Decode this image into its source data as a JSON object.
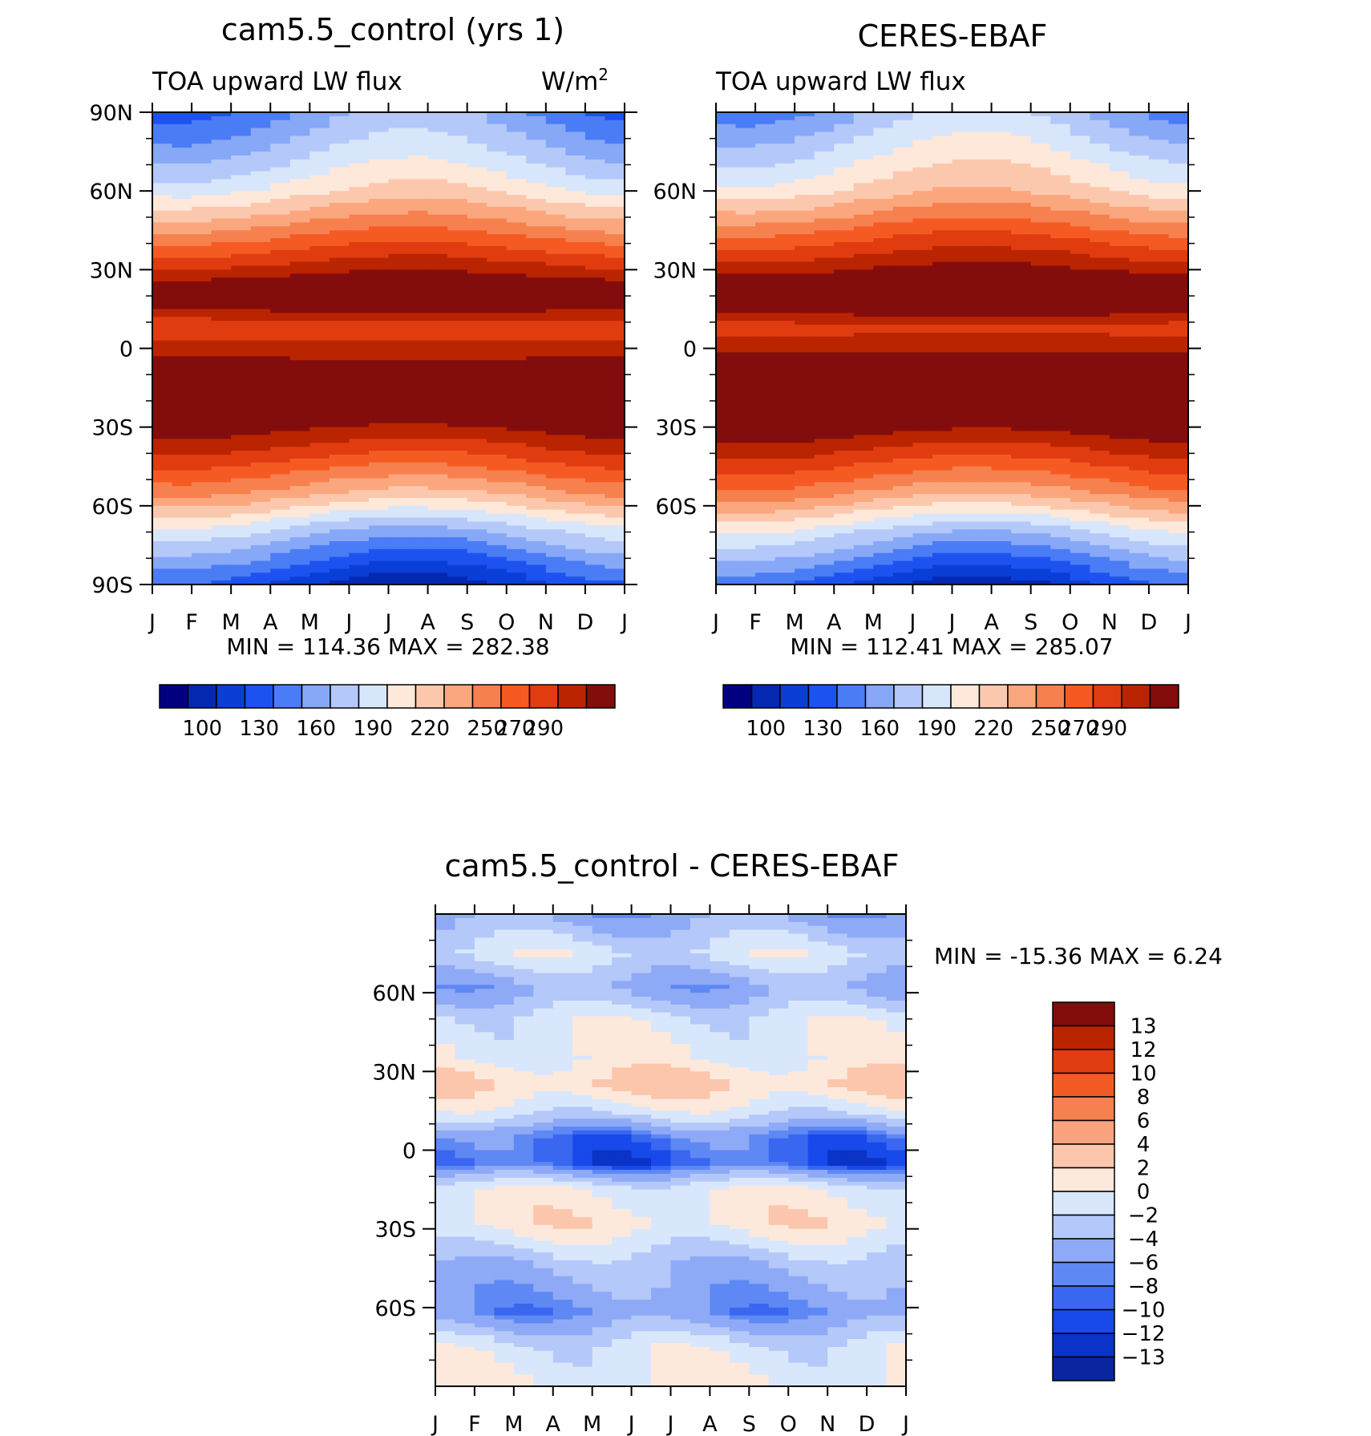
{
  "figure": {
    "colors": {
      "abs_palette": [
        "#000080",
        "#0528b0",
        "#0a3fd6",
        "#1c53f0",
        "#4a7cf5",
        "#86a8f7",
        "#b4c9fa",
        "#d8e6fb",
        "#fde8da",
        "#fcc8ad",
        "#fba77e",
        "#f7804f",
        "#f55a22",
        "#e03c10",
        "#bb2400",
        "#830d0d"
      ],
      "diff_palette": [
        "#071c8a",
        "#09259f",
        "#0a33c8",
        "#1849ea",
        "#3a67f0",
        "#5e88f3",
        "#8ea9f6",
        "#b4c8f9",
        "#d8e7fb",
        "#fde8dc",
        "#fcc6ac",
        "#f9a47e",
        "#f6804f",
        "#f35b25",
        "#df3c10",
        "#bb2400",
        "#830d0d"
      ]
    }
  },
  "chart_data": [
    {
      "type": "heatmap",
      "title": "cam5.5_control (yrs 1)",
      "left_string": "TOA upward LW flux",
      "right_string": "W/m",
      "right_string_sup": "2",
      "x_ticks": [
        "J",
        "F",
        "M",
        "A",
        "M",
        "J",
        "J",
        "A",
        "S",
        "O",
        "N",
        "D",
        "J"
      ],
      "y_ticks": [
        "90N",
        "60N",
        "30N",
        "0",
        "30S",
        "60S",
        "90S"
      ],
      "min_max": "MIN =  114.36 MAX =  282.38",
      "min": 114.36,
      "max": 282.38,
      "colorbar_levels": [
        100,
        110,
        120,
        130,
        140,
        150,
        160,
        170,
        180,
        190,
        200,
        210,
        220,
        230,
        240,
        250,
        260,
        270,
        280,
        290,
        300
      ],
      "colorbar_labels": [
        "100",
        "130",
        "160",
        "190",
        "220",
        "250",
        "270",
        "290"
      ],
      "zonal_profile": [
        {
          "lat": 90,
          "value": 150
        },
        {
          "lat": 75,
          "value": 165
        },
        {
          "lat": 60,
          "value": 185
        },
        {
          "lat": 45,
          "value": 215
        },
        {
          "lat": 30,
          "value": 245
        },
        {
          "lat": 20,
          "value": 268
        },
        {
          "lat": 8,
          "value": 232
        },
        {
          "lat": 0,
          "value": 245
        },
        {
          "lat": -15,
          "value": 265
        },
        {
          "lat": -25,
          "value": 262
        },
        {
          "lat": -40,
          "value": 235
        },
        {
          "lat": -55,
          "value": 205
        },
        {
          "lat": -70,
          "value": 165
        },
        {
          "lat": -90,
          "value": 125
        }
      ]
    },
    {
      "type": "heatmap",
      "title": "CERES-EBAF",
      "left_string": "TOA upward LW flux",
      "x_ticks": [
        "J",
        "F",
        "M",
        "A",
        "M",
        "J",
        "J",
        "A",
        "S",
        "O",
        "N",
        "D",
        "J"
      ],
      "y_ticks": [
        "60N",
        "30N",
        "0",
        "30S",
        "60S"
      ],
      "min_max": "MIN =  112.41 MAX =  285.07",
      "min": 112.41,
      "max": 285.07,
      "colorbar_levels": [
        100,
        110,
        120,
        130,
        140,
        150,
        160,
        170,
        180,
        190,
        200,
        210,
        220,
        230,
        240,
        250,
        260,
        270,
        280,
        290,
        300
      ],
      "colorbar_labels": [
        "100",
        "130",
        "160",
        "190",
        "220",
        "250",
        "270",
        "290"
      ],
      "zonal_profile": [
        {
          "lat": 90,
          "value": 158
        },
        {
          "lat": 75,
          "value": 175
        },
        {
          "lat": 60,
          "value": 192
        },
        {
          "lat": 45,
          "value": 222
        },
        {
          "lat": 30,
          "value": 250
        },
        {
          "lat": 20,
          "value": 272
        },
        {
          "lat": 8,
          "value": 236
        },
        {
          "lat": 0,
          "value": 248
        },
        {
          "lat": -15,
          "value": 270
        },
        {
          "lat": -25,
          "value": 265
        },
        {
          "lat": -40,
          "value": 238
        },
        {
          "lat": -55,
          "value": 210
        },
        {
          "lat": -70,
          "value": 170
        },
        {
          "lat": -90,
          "value": 128
        }
      ]
    },
    {
      "type": "heatmap",
      "title": "cam5.5_control - CERES-EBAF",
      "x_ticks": [
        "J",
        "F",
        "M",
        "A",
        "M",
        "J",
        "J",
        "A",
        "S",
        "O",
        "N",
        "D",
        "J"
      ],
      "y_ticks": [
        "60N",
        "30N",
        "0",
        "30S",
        "60S"
      ],
      "min_max": "MIN = -15.36 MAX =    6.24",
      "min": -15.36,
      "max": 6.24,
      "colorbar_levels": [
        -15,
        -13,
        -12,
        -11,
        -10,
        -9,
        -8,
        -6,
        -4,
        -2,
        0,
        2,
        4,
        6,
        8,
        10,
        12,
        13
      ],
      "colorbar_labels": [
        "13",
        "12",
        "10",
        "8",
        "6",
        "4",
        "2",
        "0",
        "-2",
        "-4",
        "-6",
        "-8",
        "-10",
        "-12",
        "-13"
      ],
      "zonal_profile": [
        {
          "lat": 90,
          "value": -7
        },
        {
          "lat": 75,
          "value": -3
        },
        {
          "lat": 62,
          "value": -7
        },
        {
          "lat": 50,
          "value": -3
        },
        {
          "lat": 35,
          "value": -2
        },
        {
          "lat": 25,
          "value": 0.5
        },
        {
          "lat": 15,
          "value": -3
        },
        {
          "lat": 5,
          "value": -9
        },
        {
          "lat": -5,
          "value": -10
        },
        {
          "lat": -15,
          "value": -2
        },
        {
          "lat": -28,
          "value": -1
        },
        {
          "lat": -45,
          "value": -6
        },
        {
          "lat": -62,
          "value": -8
        },
        {
          "lat": -75,
          "value": -3
        },
        {
          "lat": -90,
          "value": -2
        }
      ]
    }
  ]
}
